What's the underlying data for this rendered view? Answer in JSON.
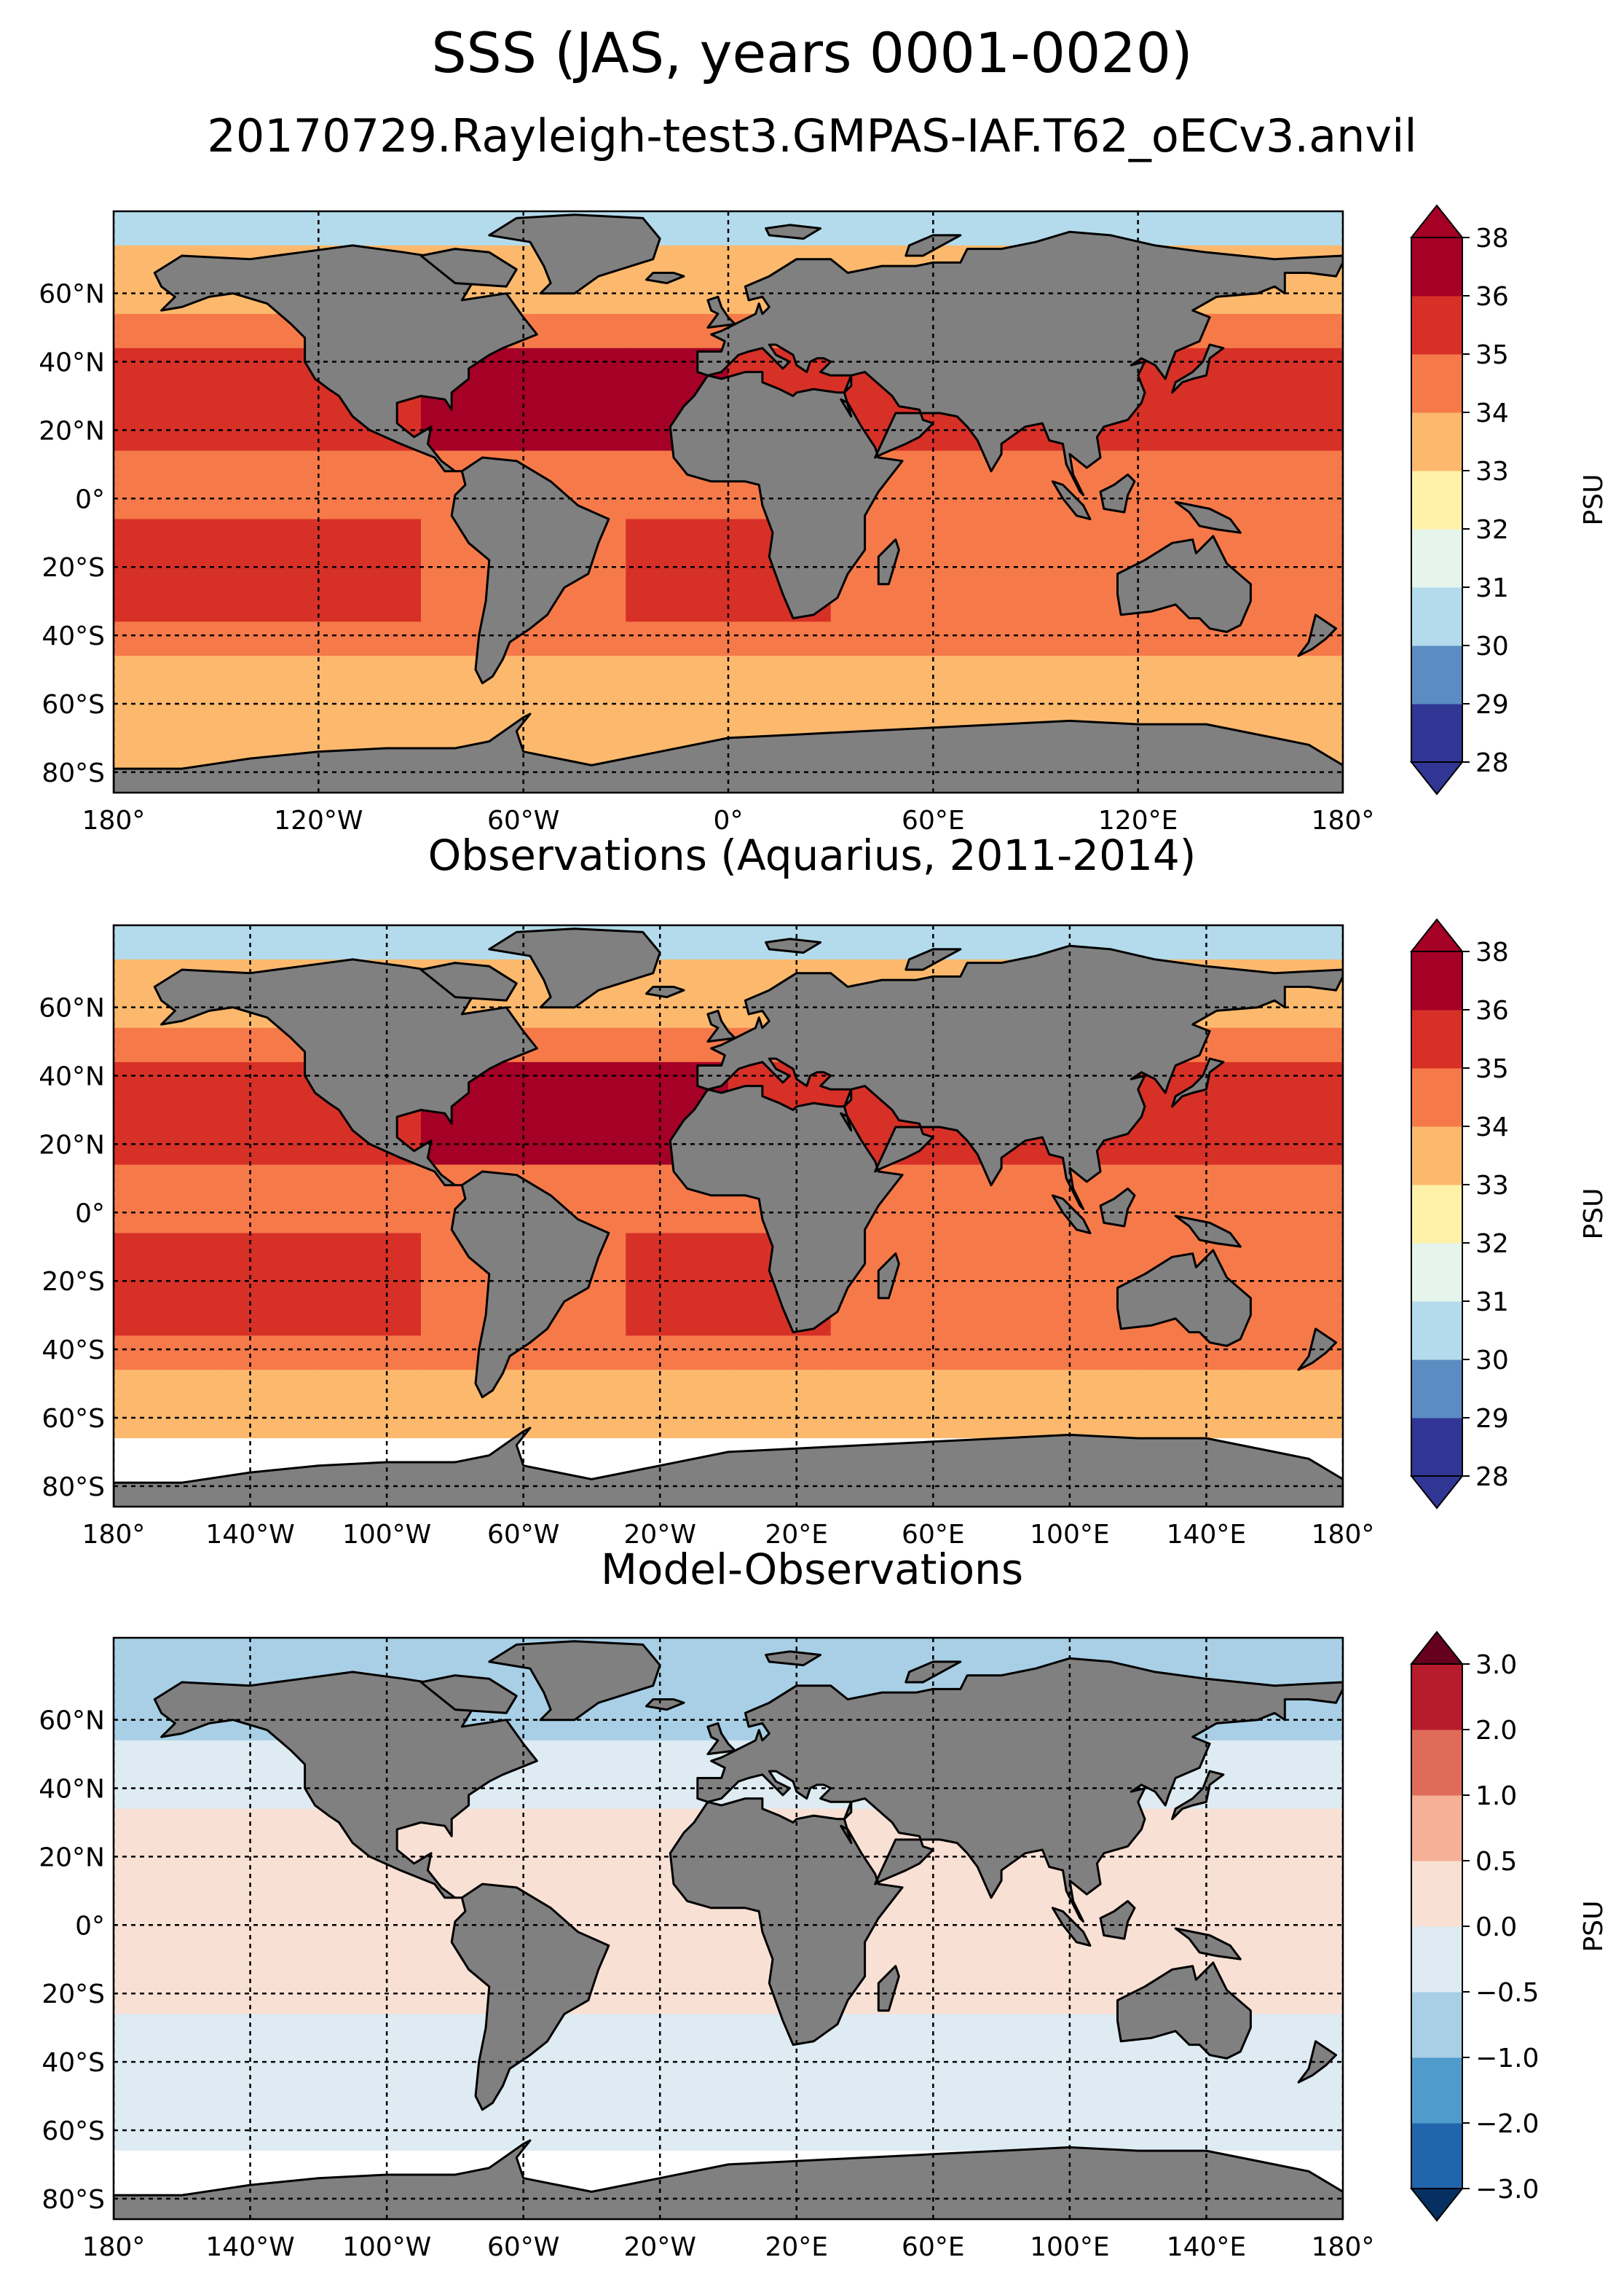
{
  "figure": {
    "title": "SSS (JAS, years 0001-0020)",
    "subtitle": "20170729.Rayleigh-test3.GMPAS-IAF.T62_oECv3.anvil"
  },
  "colors": {
    "ocean_fill": "#e6e6e6",
    "land": "#808080",
    "no_data": "#ffffff",
    "grid_line": "#000000"
  },
  "panels": [
    {
      "title": "",
      "lat_ticks": [
        "60°N",
        "40°N",
        "20°N",
        "0°",
        "20°S",
        "40°S",
        "60°S",
        "80°S"
      ],
      "lon_ticks": [
        "180°",
        "120°W",
        "60°W",
        "0°",
        "60°E",
        "120°E",
        "180°"
      ],
      "colorbar": {
        "label": "PSU",
        "tick_labels": [
          "28",
          "29",
          "30",
          "31",
          "32",
          "33",
          "34",
          "35",
          "36",
          "38"
        ],
        "colors": [
          "#313695",
          "#5b8dc3",
          "#b3dbeb",
          "#e6f5ec",
          "#fff1a8",
          "#fcb96d",
          "#f67a49",
          "#d73027",
          "#a50026"
        ],
        "extend_low_color": "#313695",
        "extend_high_color": "#a50026"
      }
    },
    {
      "title": "Observations (Aquarius, 2011-2014)",
      "lat_ticks": [
        "60°N",
        "40°N",
        "20°N",
        "0°",
        "20°S",
        "40°S",
        "60°S",
        "80°S"
      ],
      "lon_ticks": [
        "180°",
        "140°W",
        "100°W",
        "60°W",
        "20°W",
        "20°E",
        "60°E",
        "100°E",
        "140°E",
        "180°"
      ],
      "colorbar": {
        "label": "PSU",
        "tick_labels": [
          "28",
          "29",
          "30",
          "31",
          "32",
          "33",
          "34",
          "35",
          "36",
          "38"
        ],
        "colors": [
          "#313695",
          "#5b8dc3",
          "#b3dbeb",
          "#e6f5ec",
          "#fff1a8",
          "#fcb96d",
          "#f67a49",
          "#d73027",
          "#a50026"
        ],
        "extend_low_color": "#313695",
        "extend_high_color": "#a50026"
      }
    },
    {
      "title": "Model-Observations",
      "lat_ticks": [
        "60°N",
        "40°N",
        "20°N",
        "0°",
        "20°S",
        "40°S",
        "60°S",
        "80°S"
      ],
      "lon_ticks": [
        "180°",
        "140°W",
        "100°W",
        "60°W",
        "20°W",
        "20°E",
        "60°E",
        "100°E",
        "140°E",
        "180°"
      ],
      "colorbar": {
        "label": "PSU",
        "tick_labels": [
          "−3.0",
          "−2.0",
          "−1.0",
          "−0.5",
          "0.0",
          "0.5",
          "1.0",
          "2.0",
          "3.0"
        ],
        "colors": [
          "#2166ac",
          "#4f9bcb",
          "#a8cfe5",
          "#deebf3",
          "#f9e0d4",
          "#f5b097",
          "#de6c58",
          "#b71c2c"
        ],
        "extend_low_color": "#053061",
        "extend_high_color": "#67001f"
      }
    }
  ]
}
